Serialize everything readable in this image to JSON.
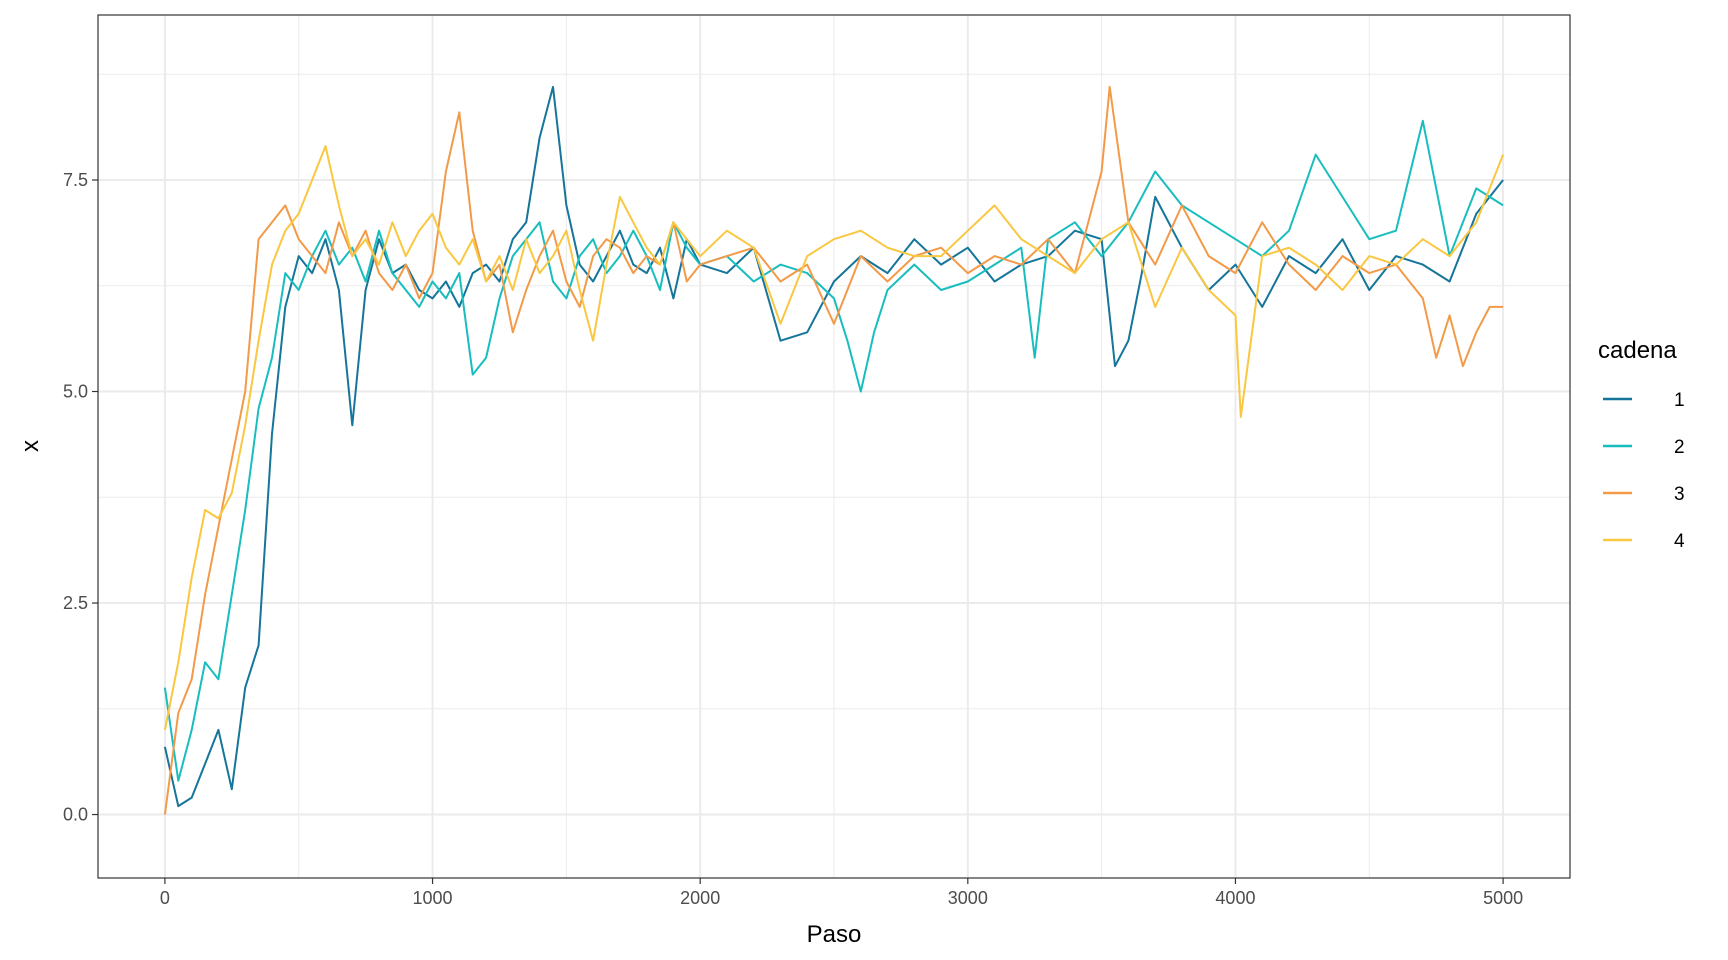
{
  "chart_data": {
    "type": "line",
    "xlabel": "Paso",
    "ylabel": "x",
    "xlim": [
      -250,
      5250
    ],
    "ylim": [
      -0.75,
      9.45
    ],
    "x_ticks": [
      0,
      1000,
      2000,
      3000,
      4000,
      5000
    ],
    "x_tick_labels": [
      "0",
      "1000",
      "2000",
      "3000",
      "4000",
      "5000"
    ],
    "y_ticks": [
      0,
      2.5,
      5,
      7.5
    ],
    "y_tick_labels": [
      "0.0",
      "2.5",
      "5.0",
      "7.5"
    ],
    "grid": true,
    "legend": {
      "title": "cadena",
      "position": "right"
    },
    "series": [
      {
        "name": "1",
        "color": "#15759a",
        "x": [
          0,
          50,
          100,
          150,
          200,
          250,
          300,
          350,
          400,
          450,
          500,
          550,
          600,
          650,
          700,
          750,
          800,
          850,
          900,
          950,
          1000,
          1050,
          1100,
          1150,
          1200,
          1250,
          1300,
          1350,
          1400,
          1450,
          1500,
          1550,
          1600,
          1650,
          1700,
          1750,
          1800,
          1850,
          1900,
          1950,
          2000,
          2100,
          2200,
          2300,
          2400,
          2500,
          2600,
          2700,
          2800,
          2900,
          3000,
          3100,
          3200,
          3300,
          3400,
          3500,
          3550,
          3600,
          3650,
          3700,
          3800,
          3900,
          4000,
          4100,
          4200,
          4300,
          4400,
          4500,
          4600,
          4700,
          4800,
          4900,
          5000
        ],
        "y": [
          0.8,
          0.1,
          0.2,
          0.6,
          1.0,
          0.3,
          1.5,
          2.0,
          4.5,
          6.0,
          6.6,
          6.4,
          6.8,
          6.2,
          4.6,
          6.2,
          6.8,
          6.4,
          6.5,
          6.2,
          6.1,
          6.3,
          6.0,
          6.4,
          6.5,
          6.3,
          6.8,
          7.0,
          8.0,
          8.6,
          7.2,
          6.5,
          6.3,
          6.6,
          6.9,
          6.5,
          6.4,
          6.7,
          6.1,
          6.8,
          6.5,
          6.4,
          6.7,
          5.6,
          5.7,
          6.3,
          6.6,
          6.4,
          6.8,
          6.5,
          6.7,
          6.3,
          6.5,
          6.6,
          6.9,
          6.8,
          5.3,
          5.6,
          6.4,
          7.3,
          6.7,
          6.2,
          6.5,
          6.0,
          6.6,
          6.4,
          6.8,
          6.2,
          6.6,
          6.5,
          6.3,
          7.1,
          7.5
        ]
      },
      {
        "name": "2",
        "color": "#18bdbe",
        "x": [
          0,
          50,
          100,
          150,
          200,
          250,
          300,
          350,
          400,
          450,
          500,
          550,
          600,
          650,
          700,
          750,
          800,
          850,
          900,
          950,
          1000,
          1050,
          1100,
          1150,
          1200,
          1250,
          1300,
          1350,
          1400,
          1450,
          1500,
          1550,
          1600,
          1650,
          1700,
          1750,
          1800,
          1850,
          1900,
          1950,
          2000,
          2100,
          2200,
          2300,
          2400,
          2500,
          2550,
          2600,
          2650,
          2700,
          2800,
          2900,
          3000,
          3100,
          3200,
          3250,
          3300,
          3400,
          3500,
          3600,
          3700,
          3800,
          3900,
          4000,
          4100,
          4200,
          4300,
          4400,
          4500,
          4600,
          4700,
          4800,
          4900,
          5000
        ],
        "y": [
          1.5,
          0.4,
          1.0,
          1.8,
          1.6,
          2.6,
          3.6,
          4.8,
          5.4,
          6.4,
          6.2,
          6.6,
          6.9,
          6.5,
          6.7,
          6.3,
          6.9,
          6.4,
          6.2,
          6.0,
          6.3,
          6.1,
          6.4,
          5.2,
          5.4,
          6.1,
          6.6,
          6.8,
          7.0,
          6.3,
          6.1,
          6.6,
          6.8,
          6.4,
          6.6,
          6.9,
          6.6,
          6.2,
          7.0,
          6.7,
          6.5,
          6.6,
          6.3,
          6.5,
          6.4,
          6.1,
          5.6,
          5.0,
          5.7,
          6.2,
          6.5,
          6.2,
          6.3,
          6.5,
          6.7,
          5.4,
          6.8,
          7.0,
          6.6,
          7.0,
          7.6,
          7.2,
          7.0,
          6.8,
          6.6,
          6.9,
          7.8,
          7.3,
          6.8,
          6.9,
          8.2,
          6.6,
          7.4,
          7.2
        ]
      },
      {
        "name": "3",
        "color": "#f39a49",
        "x": [
          0,
          50,
          100,
          150,
          200,
          250,
          300,
          350,
          400,
          450,
          500,
          550,
          600,
          650,
          700,
          750,
          800,
          850,
          900,
          950,
          1000,
          1050,
          1100,
          1150,
          1200,
          1250,
          1300,
          1350,
          1400,
          1450,
          1500,
          1550,
          1600,
          1650,
          1700,
          1750,
          1800,
          1850,
          1900,
          1950,
          2000,
          2100,
          2200,
          2300,
          2400,
          2500,
          2600,
          2700,
          2800,
          2900,
          3000,
          3100,
          3200,
          3300,
          3400,
          3500,
          3530,
          3600,
          3700,
          3800,
          3900,
          4000,
          4100,
          4200,
          4300,
          4400,
          4500,
          4600,
          4700,
          4750,
          4800,
          4850,
          4900,
          4950,
          5000
        ],
        "y": [
          0.0,
          1.2,
          1.6,
          2.6,
          3.4,
          4.2,
          5.0,
          6.8,
          7.0,
          7.2,
          6.8,
          6.6,
          6.4,
          7.0,
          6.6,
          6.9,
          6.4,
          6.2,
          6.5,
          6.1,
          6.4,
          7.6,
          8.3,
          6.9,
          6.3,
          6.5,
          5.7,
          6.2,
          6.6,
          6.9,
          6.3,
          6.0,
          6.6,
          6.8,
          6.7,
          6.4,
          6.6,
          6.5,
          7.0,
          6.3,
          6.5,
          6.6,
          6.7,
          6.3,
          6.5,
          5.8,
          6.6,
          6.3,
          6.6,
          6.7,
          6.4,
          6.6,
          6.5,
          6.8,
          6.4,
          7.6,
          8.6,
          7.0,
          6.5,
          7.2,
          6.6,
          6.4,
          7.0,
          6.5,
          6.2,
          6.6,
          6.4,
          6.5,
          6.1,
          5.4,
          5.9,
          5.3,
          5.7,
          6.0,
          6.0
        ]
      },
      {
        "name": "4",
        "color": "#f9c740",
        "x": [
          0,
          50,
          100,
          150,
          200,
          250,
          300,
          350,
          400,
          450,
          500,
          550,
          600,
          650,
          700,
          750,
          800,
          850,
          900,
          950,
          1000,
          1050,
          1100,
          1150,
          1200,
          1250,
          1300,
          1350,
          1400,
          1450,
          1500,
          1550,
          1600,
          1650,
          1700,
          1750,
          1800,
          1850,
          1900,
          1950,
          2000,
          2100,
          2200,
          2300,
          2400,
          2500,
          2600,
          2700,
          2800,
          2900,
          3000,
          3100,
          3200,
          3300,
          3400,
          3500,
          3600,
          3700,
          3800,
          3900,
          4000,
          4020,
          4100,
          4200,
          4300,
          4400,
          4500,
          4600,
          4700,
          4800,
          4900,
          5000
        ],
        "y": [
          1.0,
          1.8,
          2.8,
          3.6,
          3.5,
          3.8,
          4.6,
          5.6,
          6.5,
          6.9,
          7.1,
          7.5,
          7.9,
          7.2,
          6.6,
          6.8,
          6.5,
          7.0,
          6.6,
          6.9,
          7.1,
          6.7,
          6.5,
          6.8,
          6.3,
          6.6,
          6.2,
          6.8,
          6.4,
          6.6,
          6.9,
          6.2,
          5.6,
          6.5,
          7.3,
          7.0,
          6.7,
          6.5,
          7.0,
          6.8,
          6.6,
          6.9,
          6.7,
          5.8,
          6.6,
          6.8,
          6.9,
          6.7,
          6.6,
          6.6,
          6.9,
          7.2,
          6.8,
          6.6,
          6.4,
          6.8,
          7.0,
          6.0,
          6.7,
          6.2,
          5.9,
          4.7,
          6.6,
          6.7,
          6.5,
          6.2,
          6.6,
          6.5,
          6.8,
          6.6,
          7.0,
          7.8
        ]
      }
    ]
  }
}
